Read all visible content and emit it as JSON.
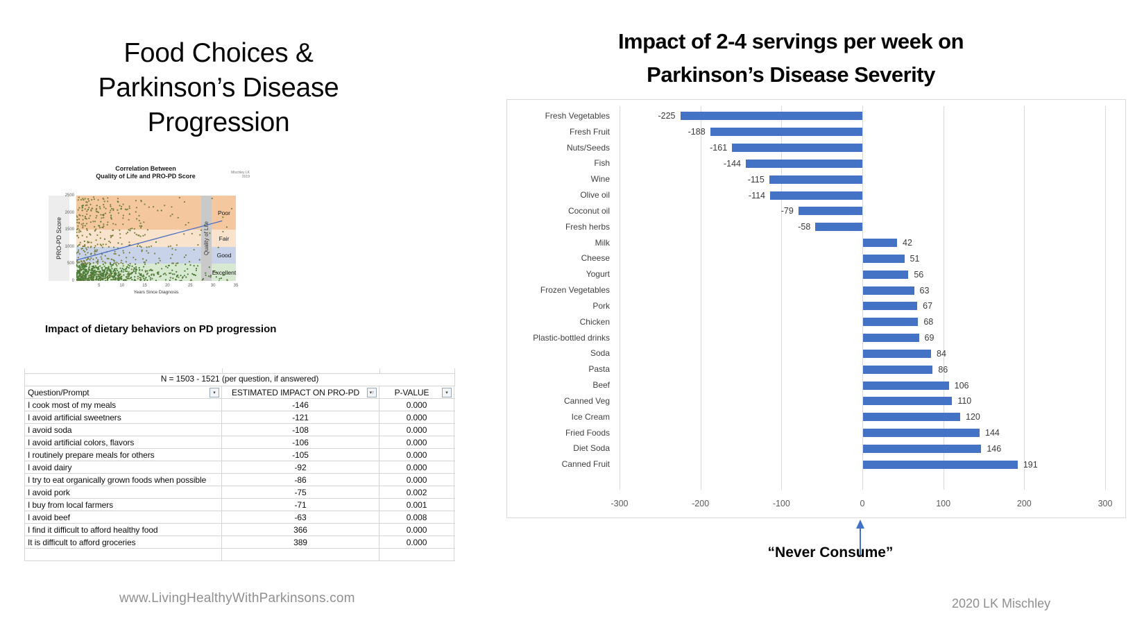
{
  "slide": {
    "title_lines": [
      "Food Choices &",
      "Parkinson’s Disease",
      "Progression"
    ],
    "section_heading": "Impact of dietary behaviors on PD progression",
    "footer_website": "www.LivingHealthyWithParkinsons.com",
    "footer_credit": "2020 LK Mischley"
  },
  "table": {
    "merged_header": "N = 1503 - 1521 (per question, if answered)",
    "columns": [
      {
        "label": "Question/Prompt",
        "icon": "filter-dropdown-icon"
      },
      {
        "label": "ESTIMATED IMPACT ON PRO-PD",
        "icon": "sort-ascending-filter-icon"
      },
      {
        "label": "P-VALUE",
        "icon": "filter-funnel-icon"
      }
    ],
    "rows": [
      {
        "question": "I cook most of my meals",
        "impact": "-146",
        "p_value": "0.000"
      },
      {
        "question": "I avoid artificial sweetners",
        "impact": "-121",
        "p_value": "0.000"
      },
      {
        "question": "I avoid soda",
        "impact": "-108",
        "p_value": "0.000"
      },
      {
        "question": "I avoid artificial colors, flavors",
        "impact": "-106",
        "p_value": "0.000"
      },
      {
        "question": "I routinely prepare meals for others",
        "impact": "-105",
        "p_value": "0.000"
      },
      {
        "question": "I avoid dairy",
        "impact": "-92",
        "p_value": "0.000"
      },
      {
        "question": "I try to eat organically grown foods when possible",
        "impact": "-86",
        "p_value": "0.000"
      },
      {
        "question": "I avoid pork",
        "impact": "-75",
        "p_value": "0.002"
      },
      {
        "question": "I buy from local farmers",
        "impact": "-71",
        "p_value": "0.001"
      },
      {
        "question": "I avoid beef",
        "impact": "-63",
        "p_value": "0.008"
      },
      {
        "question": "I find it difficult to afford healthy food",
        "impact": "366",
        "p_value": "0.000"
      },
      {
        "question": "It is difficult to afford groceries",
        "impact": "389",
        "p_value": "0.000"
      }
    ]
  },
  "chart_data": [
    {
      "type": "scatter",
      "title_lines": [
        "Correlation Between",
        "Quality of Life and PRO-PD Score"
      ],
      "credit": "Mischley LK 2019",
      "xlabel": "Years Since Diagnosis",
      "ylabel": "PRO-PD Score",
      "band_axis_label": "Quality of Life",
      "xlim": [
        0,
        35
      ],
      "ylim": [
        0,
        2500
      ],
      "xticks": [
        5,
        10,
        15,
        20,
        25,
        30,
        35
      ],
      "yticks": [
        0,
        500,
        1000,
        1500,
        2000,
        2500
      ],
      "bands": [
        {
          "label": "Poor",
          "from": 1500,
          "to": 2500,
          "color": "#f4c79e"
        },
        {
          "label": "Fair",
          "from": 1000,
          "to": 1500,
          "color": "#fae3cd"
        },
        {
          "label": "Good",
          "from": 500,
          "to": 1000,
          "color": "#c8d3ea"
        },
        {
          "label": "Excellent",
          "from": 0,
          "to": 500,
          "color": "#d7e9d1"
        }
      ],
      "trendline": {
        "x0": 0,
        "y0": 610,
        "x1": 32,
        "y1": 1760,
        "color": "#4a6fbe"
      },
      "point_cloud": {
        "count": 1050,
        "seed": 13,
        "color_low": "#4d7c39",
        "color_high": "#7b813c",
        "low_threshold": 500
      }
    },
    {
      "type": "bar",
      "orientation": "horizontal",
      "title_lines": [
        "Impact of 2-4 servings per week on",
        "Parkinson’s Disease Severity"
      ],
      "categories": [
        "Fresh Vegetables",
        "Fresh Fruit",
        "Nuts/Seeds",
        "Fish",
        "Wine",
        "Olive oil",
        "Coconut oil",
        "Fresh herbs",
        "Milk",
        "Cheese",
        "Yogurt",
        "Frozen Vegetables",
        "Pork",
        "Chicken",
        "Plastic-bottled drinks",
        "Soda",
        "Pasta",
        "Beef",
        "Canned Veg",
        "Ice Cream",
        "Fried Foods",
        "Diet Soda",
        "Canned Fruit"
      ],
      "values": [
        -225,
        -188,
        -161,
        -144,
        -115,
        -114,
        -79,
        -58,
        42,
        51,
        56,
        63,
        67,
        68,
        69,
        84,
        86,
        106,
        110,
        120,
        144,
        146,
        191
      ],
      "xlim": [
        -300,
        300
      ],
      "xticks": [
        -300,
        -200,
        -100,
        0,
        100,
        200,
        300
      ],
      "bar_color": "#4472c4",
      "annotation": "“Never Consume”"
    }
  ]
}
